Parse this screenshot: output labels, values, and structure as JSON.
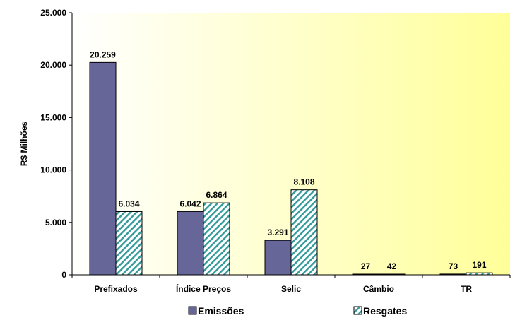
{
  "chart_data": {
    "type": "bar",
    "title": "",
    "xlabel": "",
    "ylabel": "R$ Milhões",
    "ylim": [
      0,
      25000
    ],
    "yticks": [
      0,
      5000,
      10000,
      15000,
      20000,
      25000
    ],
    "ytick_labels": [
      "0",
      "5.000",
      "10.000",
      "15.000",
      "20.000",
      "25.000"
    ],
    "categories": [
      "Prefixados",
      "Índice Preços",
      "Selic",
      "Câmbio",
      "TR"
    ],
    "series": [
      {
        "name": "Emissões",
        "values": [
          20259,
          6042,
          3291,
          27,
          73
        ],
        "labels": [
          "20.259",
          "6.042",
          "3.291",
          "27",
          "73"
        ],
        "color": "#666699",
        "pattern": "solid"
      },
      {
        "name": "Resgates",
        "values": [
          6034,
          6864,
          8108,
          42,
          191
        ],
        "labels": [
          "6.034",
          "6.864",
          "8.108",
          "42",
          "191"
        ],
        "color": "#339999",
        "pattern": "diagonal-hatch"
      }
    ],
    "grid": false,
    "legend": "bottom",
    "plot_background": "gradient-white-to-yellow"
  }
}
